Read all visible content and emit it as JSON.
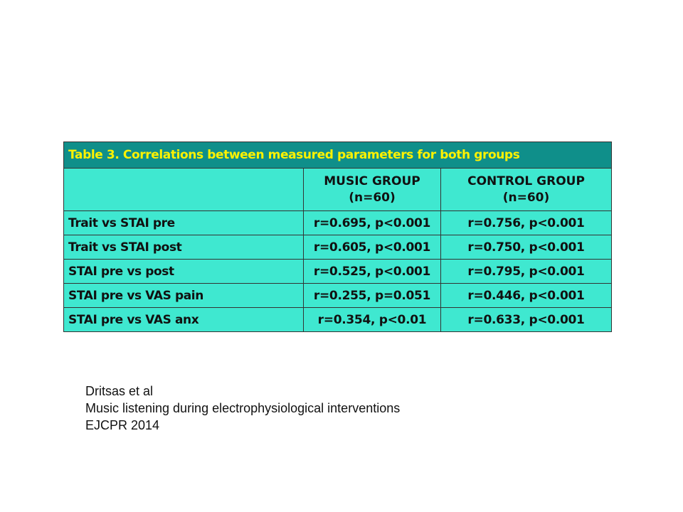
{
  "table": {
    "title": "Table 3. Correlations between measured parameters for both groups",
    "columns": [
      {
        "line1": "MUSIC GROUP",
        "line2": "(n=60)"
      },
      {
        "line1": "CONTROL GROUP",
        "line2": "(n=60)"
      }
    ],
    "rows": [
      {
        "label": "Trait vs STAI pre",
        "music": "r=0.695, p<0.001",
        "control": "r=0.756, p<0.001"
      },
      {
        "label": "Trait vs STAI post",
        "music": "r=0.605, p<0.001",
        "control": "r=0.750, p<0.001"
      },
      {
        "label": "STAI pre vs post",
        "music": "r=0.525, p<0.001",
        "control": "r=0.795, p<0.001"
      },
      {
        "label": "STAI pre vs VAS pain",
        "music": "r=0.255, p=0.051",
        "control": "r=0.446, p<0.001"
      },
      {
        "label": "STAI pre vs VAS anx",
        "music": "r=0.354, p<0.01",
        "control": "r=0.633, p<0.001"
      }
    ],
    "colors": {
      "title_bg": "#0f8f8a",
      "title_text": "#fff200",
      "cell_bg": "#3fe8d0"
    }
  },
  "caption": {
    "line1": "Dritsas et al",
    "line2": "Music listening during electrophysiological  interventions",
    "line3": "EJCPR 2014"
  }
}
